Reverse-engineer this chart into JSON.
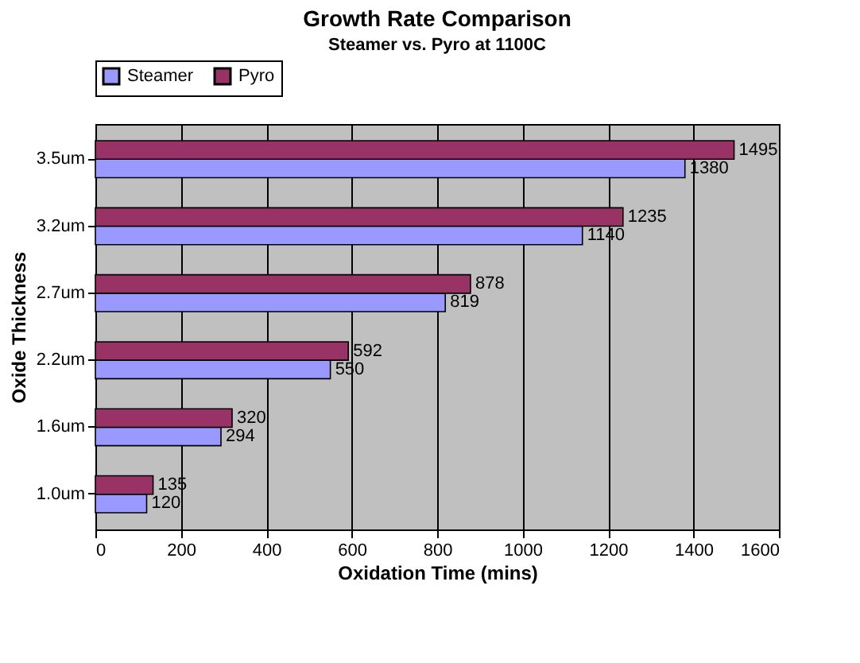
{
  "chart_data": {
    "type": "bar",
    "orientation": "horizontal",
    "title": "Growth Rate Comparison",
    "subtitle": "Steamer vs. Pyro at 1100C",
    "xlabel": "Oxidation Time (mins)",
    "ylabel": "Oxide Thickness",
    "categories": [
      "3.5um",
      "3.2um",
      "2.7um",
      "2.2um",
      "1.6um",
      "1.0um"
    ],
    "series": [
      {
        "name": "Steamer",
        "color": "#9999ff",
        "values": [
          1380,
          1140,
          819,
          550,
          294,
          120
        ]
      },
      {
        "name": "Pyro",
        "color": "#993366",
        "values": [
          1495,
          1235,
          878,
          592,
          320,
          135
        ]
      }
    ],
    "xlim": [
      0,
      1600
    ],
    "xticks": [
      0,
      200,
      400,
      600,
      800,
      1000,
      1200,
      1400,
      1600
    ],
    "grid": "x",
    "legend": "top",
    "data_labels": true
  }
}
